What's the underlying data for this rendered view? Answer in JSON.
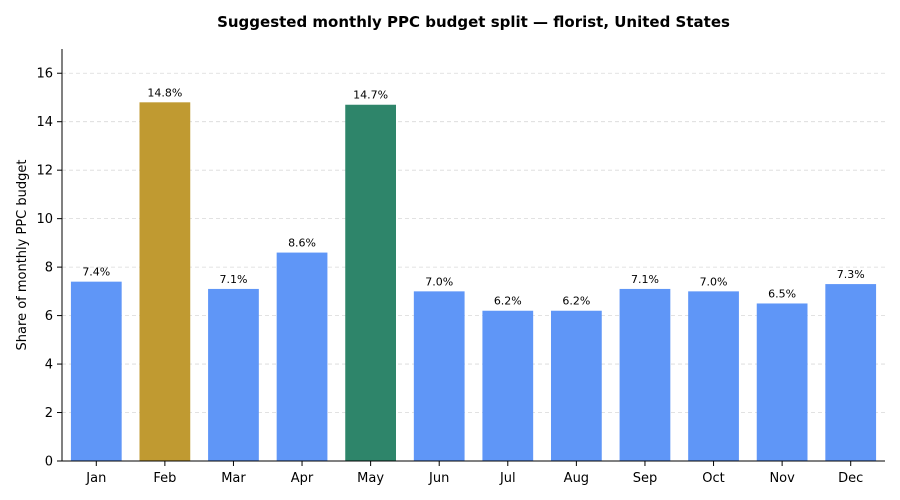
{
  "chart_data": {
    "type": "bar",
    "title": "Suggested monthly PPC budget split — florist, United States",
    "xlabel": "",
    "ylabel": "Share of monthly PPC budget",
    "categories": [
      "Jan",
      "Feb",
      "Mar",
      "Apr",
      "May",
      "Jun",
      "Jul",
      "Aug",
      "Sep",
      "Oct",
      "Nov",
      "Dec"
    ],
    "values": [
      7.4,
      14.8,
      7.1,
      8.6,
      14.7,
      7.0,
      6.2,
      6.2,
      7.1,
      7.0,
      6.5,
      7.3
    ],
    "data_labels": [
      "7.4%",
      "14.8%",
      "7.1%",
      "8.6%",
      "14.7%",
      "7.0%",
      "6.2%",
      "6.2%",
      "7.1%",
      "7.0%",
      "6.5%",
      "7.3%"
    ],
    "bar_colors": [
      "#5f96f7",
      "#c09a31",
      "#5f96f7",
      "#5f96f7",
      "#2e856a",
      "#5f96f7",
      "#5f96f7",
      "#5f96f7",
      "#5f96f7",
      "#5f96f7",
      "#5f96f7",
      "#5f96f7"
    ],
    "ylim": [
      0,
      17
    ],
    "yticks": [
      0,
      2,
      4,
      6,
      8,
      10,
      12,
      14,
      16
    ],
    "grid": true
  }
}
